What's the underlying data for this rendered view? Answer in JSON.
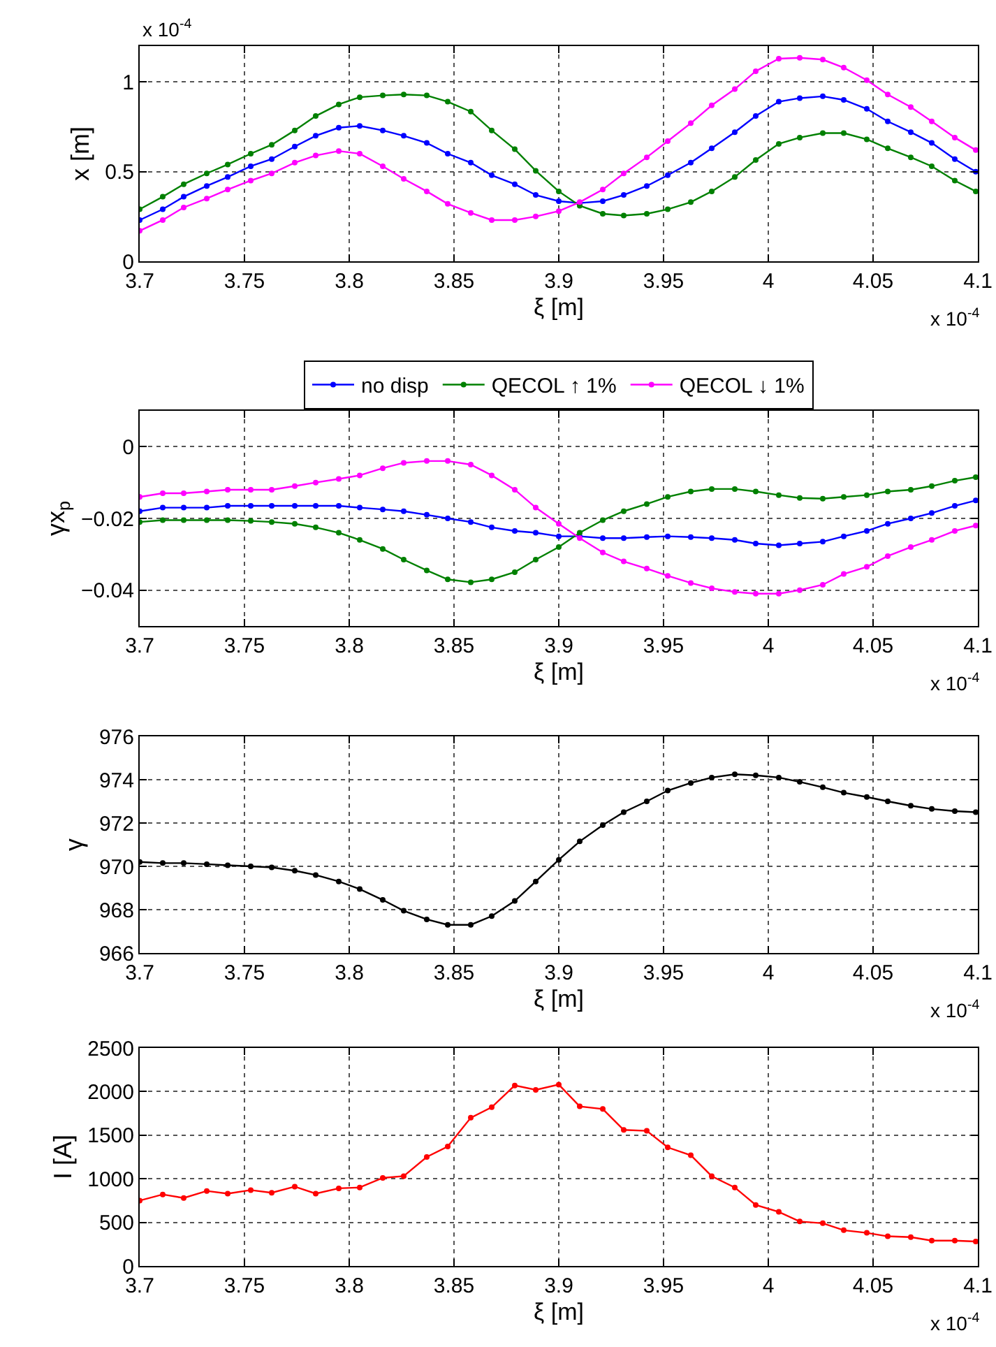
{
  "chart_data": [
    {
      "type": "line",
      "xlabel": "ξ [m]",
      "ylabel": "x [m]",
      "marker": "circle",
      "line_style": "solid",
      "grid": true,
      "legend": "bottom",
      "xlim": [
        3.7,
        4.1
      ],
      "xticks": [
        3.7,
        3.75,
        3.8,
        3.85,
        3.9,
        3.95,
        4,
        4.05,
        4.1
      ],
      "ylim": [
        0,
        1.2
      ],
      "yticks": [
        0,
        0.5,
        1
      ],
      "annotations": [
        "x 10$^{-4}$",
        "x 10$^{-4}$"
      ],
      "x": [
        3.7,
        3.711,
        3.721,
        3.732,
        3.742,
        3.753,
        3.763,
        3.774,
        3.784,
        3.795,
        3.805,
        3.816,
        3.826,
        3.837,
        3.847,
        3.858,
        3.868,
        3.879,
        3.889,
        3.9,
        3.91,
        3.921,
        3.931,
        3.942,
        3.952,
        3.963,
        3.973,
        3.984,
        3.994,
        4.005,
        4.015,
        4.026,
        4.036,
        4.047,
        4.057,
        4.068,
        4.078,
        4.089,
        4.099
      ],
      "series": [
        {
          "name": "no disp",
          "color": "#0000ff",
          "values": [
            0.23,
            0.29,
            0.36,
            0.42,
            0.47,
            0.53,
            0.57,
            0.64,
            0.7,
            0.745,
            0.755,
            0.73,
            0.7,
            0.66,
            0.6,
            0.55,
            0.48,
            0.43,
            0.37,
            0.335,
            0.325,
            0.335,
            0.37,
            0.42,
            0.48,
            0.55,
            0.63,
            0.72,
            0.81,
            0.89,
            0.91,
            0.92,
            0.9,
            0.85,
            0.78,
            0.72,
            0.66,
            0.57,
            0.5
          ]
        },
        {
          "name": "QECOL ↑ 1%",
          "color": "#008000",
          "values": [
            0.29,
            0.36,
            0.43,
            0.49,
            0.54,
            0.6,
            0.65,
            0.73,
            0.81,
            0.875,
            0.915,
            0.925,
            0.93,
            0.925,
            0.89,
            0.835,
            0.73,
            0.625,
            0.505,
            0.39,
            0.31,
            0.265,
            0.255,
            0.265,
            0.29,
            0.33,
            0.39,
            0.47,
            0.565,
            0.655,
            0.69,
            0.715,
            0.715,
            0.68,
            0.63,
            0.58,
            0.53,
            0.45,
            0.39
          ]
        },
        {
          "name": "QECOL ↓ 1%",
          "color": "#ff00ff",
          "values": [
            0.17,
            0.23,
            0.3,
            0.35,
            0.4,
            0.45,
            0.49,
            0.55,
            0.59,
            0.615,
            0.6,
            0.53,
            0.46,
            0.39,
            0.32,
            0.27,
            0.23,
            0.23,
            0.25,
            0.28,
            0.33,
            0.4,
            0.49,
            0.58,
            0.67,
            0.77,
            0.87,
            0.96,
            1.06,
            1.13,
            1.135,
            1.125,
            1.08,
            1.01,
            0.93,
            0.86,
            0.78,
            0.69,
            0.62
          ]
        }
      ]
    },
    {
      "type": "line",
      "xlabel": "ξ [m]",
      "ylabel": "γx$_{p}$",
      "marker": "circle",
      "line_style": "solid",
      "grid": true,
      "xlim": [
        3.7,
        4.1
      ],
      "xticks": [
        3.7,
        3.75,
        3.8,
        3.85,
        3.9,
        3.95,
        4,
        4.05,
        4.1
      ],
      "ylim": [
        -0.05,
        0.01
      ],
      "yticks": [
        {
          "value": -0.04,
          "label": "−0.04"
        },
        {
          "value": -0.02,
          "label": "−0.02"
        },
        0
      ],
      "annotations": [
        "x 10$^{-4}$"
      ],
      "x": [
        3.7,
        3.711,
        3.721,
        3.732,
        3.742,
        3.753,
        3.763,
        3.774,
        3.784,
        3.795,
        3.805,
        3.816,
        3.826,
        3.837,
        3.847,
        3.858,
        3.868,
        3.879,
        3.889,
        3.9,
        3.91,
        3.921,
        3.931,
        3.942,
        3.952,
        3.963,
        3.973,
        3.984,
        3.994,
        4.005,
        4.015,
        4.026,
        4.036,
        4.047,
        4.057,
        4.068,
        4.078,
        4.089,
        4.099
      ],
      "series": [
        {
          "color": "#0000ff",
          "values": [
            -0.018,
            -0.017,
            -0.017,
            -0.017,
            -0.0165,
            -0.0165,
            -0.0165,
            -0.0165,
            -0.0165,
            -0.0165,
            -0.017,
            -0.0175,
            -0.018,
            -0.019,
            -0.02,
            -0.021,
            -0.0225,
            -0.0235,
            -0.024,
            -0.025,
            -0.025,
            -0.0255,
            -0.0255,
            -0.0252,
            -0.025,
            -0.0252,
            -0.0255,
            -0.026,
            -0.027,
            -0.0275,
            -0.027,
            -0.0265,
            -0.025,
            -0.0235,
            -0.0215,
            -0.02,
            -0.0185,
            -0.0165,
            -0.015
          ]
        },
        {
          "color": "#008000",
          "values": [
            -0.021,
            -0.0205,
            -0.0205,
            -0.0205,
            -0.0205,
            -0.0207,
            -0.021,
            -0.0215,
            -0.0225,
            -0.024,
            -0.026,
            -0.0285,
            -0.0315,
            -0.0345,
            -0.037,
            -0.0378,
            -0.037,
            -0.035,
            -0.0315,
            -0.028,
            -0.024,
            -0.0205,
            -0.018,
            -0.016,
            -0.014,
            -0.0125,
            -0.0118,
            -0.0118,
            -0.0125,
            -0.0135,
            -0.0143,
            -0.0145,
            -0.014,
            -0.0135,
            -0.0125,
            -0.012,
            -0.011,
            -0.0095,
            -0.0085
          ]
        },
        {
          "color": "#ff00ff",
          "values": [
            -0.014,
            -0.013,
            -0.013,
            -0.0125,
            -0.012,
            -0.012,
            -0.012,
            -0.011,
            -0.01,
            -0.009,
            -0.008,
            -0.006,
            -0.0045,
            -0.004,
            -0.004,
            -0.005,
            -0.008,
            -0.012,
            -0.017,
            -0.0215,
            -0.0255,
            -0.0295,
            -0.032,
            -0.034,
            -0.036,
            -0.038,
            -0.0395,
            -0.0405,
            -0.041,
            -0.041,
            -0.04,
            -0.0385,
            -0.0355,
            -0.0335,
            -0.0305,
            -0.028,
            -0.026,
            -0.0235,
            -0.022
          ]
        }
      ]
    },
    {
      "type": "line",
      "xlabel": "ξ [m]",
      "ylabel": "γ",
      "marker": "circle",
      "line_style": "solid",
      "grid": true,
      "xlim": [
        3.7,
        4.1
      ],
      "xticks": [
        3.7,
        3.75,
        3.8,
        3.85,
        3.9,
        3.95,
        4,
        4.05,
        4.1
      ],
      "ylim": [
        966,
        976
      ],
      "yticks": [
        966,
        968,
        970,
        972,
        974,
        976
      ],
      "annotations": [
        "x 10$^{-4}$"
      ],
      "x": [
        3.7,
        3.711,
        3.721,
        3.732,
        3.742,
        3.753,
        3.763,
        3.774,
        3.784,
        3.795,
        3.805,
        3.816,
        3.826,
        3.837,
        3.847,
        3.858,
        3.868,
        3.879,
        3.889,
        3.9,
        3.91,
        3.921,
        3.931,
        3.942,
        3.952,
        3.963,
        3.973,
        3.984,
        3.994,
        4.005,
        4.015,
        4.026,
        4.036,
        4.047,
        4.057,
        4.068,
        4.078,
        4.089,
        4.099
      ],
      "series": [
        {
          "color": "#000000",
          "values": [
            970.2,
            970.15,
            970.15,
            970.1,
            970.05,
            970.0,
            969.95,
            969.8,
            969.6,
            969.3,
            968.95,
            968.45,
            967.95,
            967.55,
            967.3,
            967.3,
            967.7,
            968.4,
            969.3,
            970.3,
            971.15,
            971.9,
            972.5,
            973.0,
            973.5,
            973.85,
            974.1,
            974.25,
            974.2,
            974.1,
            973.9,
            973.65,
            973.4,
            973.2,
            973.0,
            972.8,
            972.65,
            972.55,
            972.5
          ]
        }
      ]
    },
    {
      "type": "line",
      "xlabel": "ξ [m]",
      "ylabel": "I [A]",
      "marker": "circle",
      "line_style": "solid",
      "grid": true,
      "xlim": [
        3.7,
        4.1
      ],
      "xticks": [
        3.7,
        3.75,
        3.8,
        3.85,
        3.9,
        3.95,
        4,
        4.05,
        4.1
      ],
      "ylim": [
        0,
        2500
      ],
      "yticks": [
        0,
        500,
        1000,
        1500,
        2000,
        2500
      ],
      "annotations": [
        "x 10$^{-4}$"
      ],
      "x": [
        3.7,
        3.711,
        3.721,
        3.732,
        3.742,
        3.753,
        3.763,
        3.774,
        3.784,
        3.795,
        3.805,
        3.816,
        3.826,
        3.837,
        3.847,
        3.858,
        3.868,
        3.879,
        3.889,
        3.9,
        3.91,
        3.921,
        3.931,
        3.942,
        3.952,
        3.963,
        3.973,
        3.984,
        3.994,
        4.005,
        4.015,
        4.026,
        4.036,
        4.047,
        4.057,
        4.068,
        4.078,
        4.089,
        4.099
      ],
      "series": [
        {
          "color": "#ff0000",
          "values": [
            750,
            820,
            780,
            860,
            830,
            870,
            840,
            910,
            830,
            890,
            900,
            1010,
            1030,
            1250,
            1370,
            1700,
            1820,
            2070,
            2020,
            2080,
            1830,
            1800,
            1560,
            1550,
            1360,
            1270,
            1030,
            900,
            700,
            620,
            510,
            490,
            410,
            380,
            340,
            330,
            290,
            290,
            280
          ]
        }
      ]
    }
  ]
}
